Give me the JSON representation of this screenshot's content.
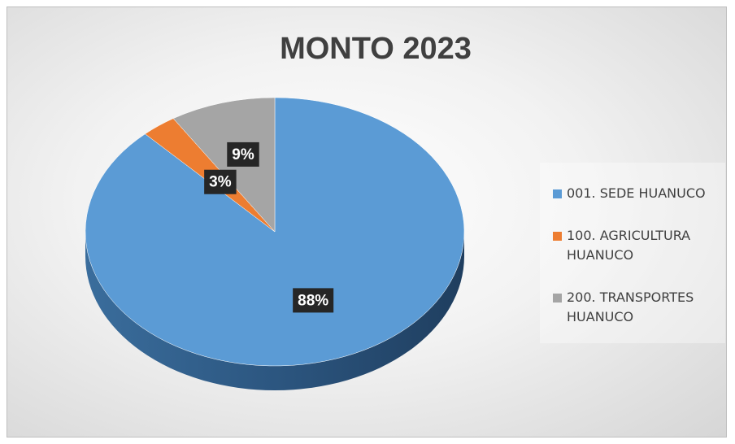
{
  "chart_data": {
    "type": "pie",
    "title": "MONTO 2023",
    "categories": [
      "001. SEDE HUANUCO",
      "100. AGRICULTURA HUANUCO",
      "200. TRANSPORTES HUANUCO"
    ],
    "values": [
      88,
      3,
      9
    ],
    "value_labels": [
      "88%",
      "3%",
      "9%"
    ],
    "colors": [
      "#5b9bd5",
      "#ed7d31",
      "#a5a5a5"
    ],
    "legend": "right"
  }
}
